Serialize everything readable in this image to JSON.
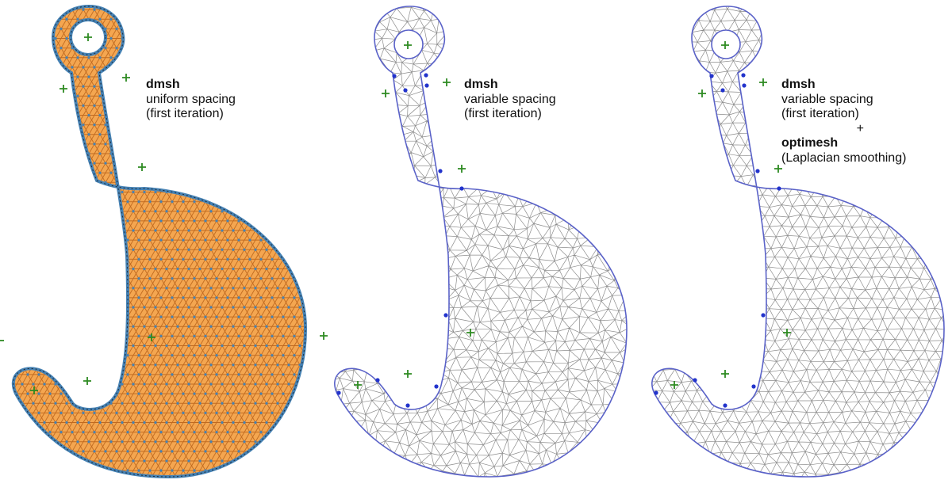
{
  "panels": [
    {
      "title": "dmsh",
      "line1": "uniform spacing",
      "line2": "(first iteration)",
      "style": "uniform"
    },
    {
      "title": "dmsh",
      "line1": "variable spacing",
      "line2": "(first iteration)",
      "style": "variable"
    },
    {
      "title": "dmsh",
      "line1": "variable spacing",
      "line2": "(first iteration)",
      "plus": "+",
      "title2": "optimesh",
      "line3": "(Laplacian smoothing)",
      "style": "smoothed"
    }
  ],
  "colors": {
    "uniform_fill": "#f4a650",
    "uniform_edge": "#4682b4",
    "mesh_line": "#8c8c8c",
    "boundary": "#5a62c8",
    "boundary_point": "#2233cc",
    "center_marker": "#2e8b22",
    "text": "#111111"
  }
}
